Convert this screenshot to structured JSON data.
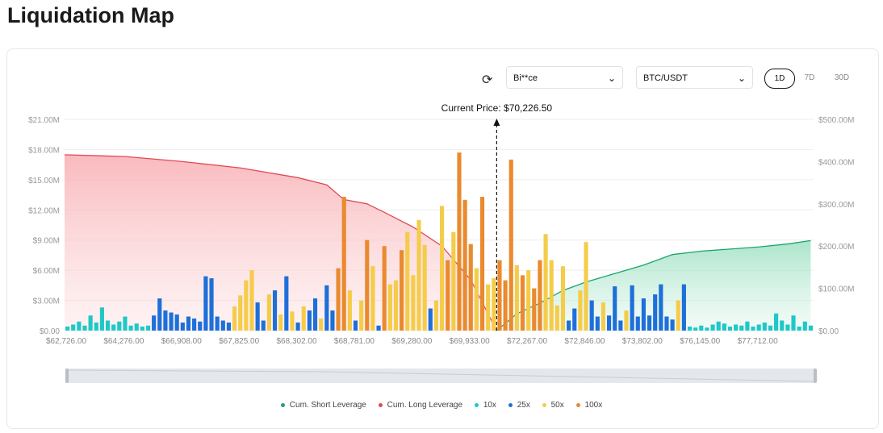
{
  "title": "Liquidation Map",
  "controls": {
    "exchange": "Bi**ce",
    "pair": "BTC/USDT",
    "timeframes": [
      "1D",
      "7D",
      "30D"
    ],
    "active_timeframe": "1D"
  },
  "colors": {
    "short": "#1aa56b",
    "long": "#e04a55",
    "10x": "#1ec8c8",
    "25x": "#1e6fd9",
    "50x": "#f5cc4a",
    "100x": "#ea8a2e"
  },
  "chart_data": {
    "type": "bar",
    "current_price_label": "Current Price: $70,226.50",
    "left_axis": {
      "ticks": [
        "$0.00",
        "$3.00M",
        "$6.00M",
        "$9.00M",
        "$12.00M",
        "$15.00M",
        "$18.00M",
        "$21.00M"
      ],
      "range": [
        0,
        21
      ]
    },
    "right_axis": {
      "ticks": [
        "$0.00",
        "$100.00M",
        "$200.00M",
        "$300.00M",
        "$400.00M",
        "$500.00M"
      ],
      "range": [
        0,
        500
      ]
    },
    "x_ticks": [
      "$62,726.00",
      "$64,276.00",
      "$66,908.00",
      "$67,825.00",
      "$68,302.00",
      "$68,781.00",
      "$69,280.00",
      "$69,933.00",
      "$72,267.00",
      "$72,846.00",
      "$73,802.00",
      "$76,145.00",
      "$77,712.00"
    ],
    "legend": [
      "Cum. Short Leverage",
      "Cum. Long Leverage",
      "10x",
      "25x",
      "50x",
      "100x"
    ],
    "bars_millions": [
      0.4,
      0.6,
      0.9,
      0.5,
      1.5,
      0.8,
      2.3,
      1.0,
      0.6,
      0.9,
      1.4,
      0.5,
      0.7,
      0.4,
      0.5,
      1.5,
      3.2,
      2.0,
      1.8,
      1.6,
      0.8,
      1.4,
      1.2,
      0.9,
      5.4,
      5.2,
      1.4,
      1.0,
      0.8,
      2.4,
      3.5,
      5.0,
      6.0,
      2.8,
      1.0,
      3.6,
      4.0,
      1.6,
      5.4,
      1.9,
      0.8,
      2.4,
      2.0,
      3.2,
      1.2,
      4.5,
      2.0,
      6.2,
      13.3,
      4.0,
      1.0,
      3.0,
      9.0,
      6.4,
      0.5,
      8.4,
      4.6,
      5.0,
      8.0,
      9.8,
      5.5,
      11.0,
      8.5,
      2.2,
      3.0,
      12.4,
      7.0,
      9.8,
      17.7,
      13.0,
      8.6,
      6.2,
      13.3,
      4.6,
      5.2,
      7.0,
      5.0,
      17.0,
      6.5,
      5.5,
      6.0,
      4.2,
      7.0,
      9.6,
      7.0,
      2.5,
      6.4,
      1.0,
      2.2,
      4.0,
      8.8,
      3.0,
      1.4,
      2.8,
      1.5,
      4.4,
      1.0,
      2.0,
      4.5,
      1.4,
      3.2,
      1.5,
      3.6,
      4.6,
      1.4,
      1.1,
      3.0,
      4.6,
      0.4,
      0.3,
      0.5,
      0.3,
      0.6,
      0.9,
      0.7,
      0.4,
      0.6,
      0.5,
      0.9,
      0.4,
      0.6,
      0.8,
      0.5,
      1.7,
      1.0,
      0.6,
      1.5,
      0.4,
      0.9,
      0.5
    ],
    "bars_leverage": [
      "10x",
      "10x",
      "10x",
      "10x",
      "10x",
      "10x",
      "10x",
      "10x",
      "10x",
      "10x",
      "10x",
      "10x",
      "10x",
      "10x",
      "10x",
      "25x",
      "25x",
      "25x",
      "25x",
      "25x",
      "25x",
      "25x",
      "25x",
      "25x",
      "25x",
      "25x",
      "25x",
      "25x",
      "25x",
      "50x",
      "50x",
      "50x",
      "50x",
      "25x",
      "25x",
      "50x",
      "25x",
      "50x",
      "25x",
      "50x",
      "25x",
      "50x",
      "25x",
      "25x",
      "50x",
      "25x",
      "25x",
      "100x",
      "100x",
      "50x",
      "25x",
      "50x",
      "100x",
      "50x",
      "25x",
      "100x",
      "50x",
      "50x",
      "100x",
      "50x",
      "50x",
      "50x",
      "50x",
      "25x",
      "50x",
      "50x",
      "100x",
      "50x",
      "100x",
      "100x",
      "100x",
      "50x",
      "100x",
      "50x",
      "50x",
      "100x",
      "100x",
      "100x",
      "50x",
      "100x",
      "50x",
      "100x",
      "100x",
      "50x",
      "50x",
      "50x",
      "50x",
      "25x",
      "25x",
      "50x",
      "50x",
      "25x",
      "25x",
      "50x",
      "25x",
      "25x",
      "25x",
      "50x",
      "25x",
      "25x",
      "25x",
      "25x",
      "25x",
      "25x",
      "25x",
      "25x",
      "50x",
      "25x",
      "10x",
      "10x",
      "10x",
      "10x",
      "10x",
      "10x",
      "10x",
      "10x",
      "10x",
      "10x",
      "10x",
      "10x",
      "10x",
      "10x",
      "10x",
      "10x",
      "10x",
      "10x",
      "10x",
      "10x",
      "10x",
      "10x"
    ],
    "cum_long_millions": [
      [
        0,
        416
      ],
      [
        10,
        412
      ],
      [
        20,
        400
      ],
      [
        30,
        385
      ],
      [
        40,
        362
      ],
      [
        45,
        345
      ],
      [
        48,
        310
      ],
      [
        52,
        300
      ],
      [
        55,
        280
      ],
      [
        60,
        245
      ],
      [
        65,
        200
      ],
      [
        70,
        120
      ],
      [
        74.5,
        0
      ]
    ],
    "cum_short_millions": [
      [
        74.5,
        0
      ],
      [
        78,
        40
      ],
      [
        82,
        65
      ],
      [
        86,
        95
      ],
      [
        90,
        115
      ],
      [
        95,
        135
      ],
      [
        100,
        155
      ],
      [
        105,
        180
      ],
      [
        110,
        188
      ],
      [
        115,
        193
      ],
      [
        120,
        198
      ],
      [
        125,
        205
      ],
      [
        129,
        213
      ]
    ]
  }
}
